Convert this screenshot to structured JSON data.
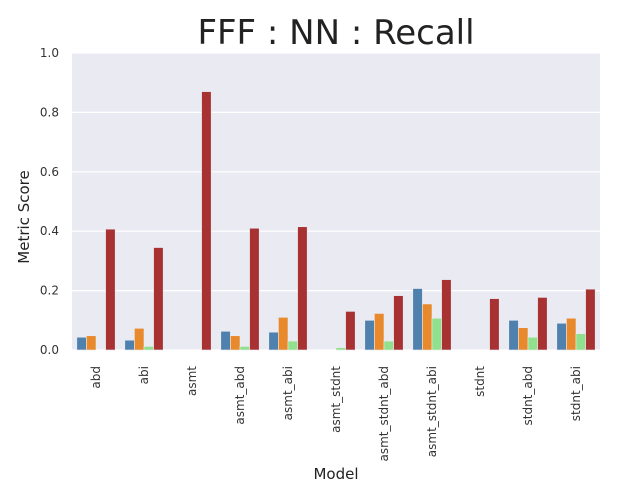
{
  "chart_data": {
    "type": "bar",
    "title": "FFF : NN : Recall",
    "xlabel": "Model",
    "ylabel": "Metric Score",
    "ylim": [
      0,
      1.0
    ],
    "yticks": [
      "0.0",
      "0.2",
      "0.4",
      "0.6",
      "0.8",
      "1.0"
    ],
    "grid": true,
    "categories": [
      "abd",
      "abi",
      "asmt",
      "asmt_abd",
      "asmt_abi",
      "asmt_stdnt",
      "asmt_stdnt_abd",
      "asmt_stdnt_abi",
      "stdnt",
      "stdnt_abd",
      "stdnt_abi"
    ],
    "series": [
      {
        "color": "#4f81af",
        "values": [
          0.043,
          0.033,
          0.0,
          0.063,
          0.06,
          0.0,
          0.1,
          0.207,
          0.0,
          0.1,
          0.09
        ]
      },
      {
        "color": "#e8892b",
        "values": [
          0.048,
          0.073,
          0.0,
          0.048,
          0.11,
          0.0,
          0.123,
          0.155,
          0.0,
          0.075,
          0.107
        ]
      },
      {
        "color": "#90e08c",
        "values": [
          0.0,
          0.012,
          0.0,
          0.012,
          0.03,
          0.008,
          0.03,
          0.107,
          0.0,
          0.043,
          0.055
        ]
      },
      {
        "color": "#a83232",
        "values": [
          0.407,
          0.345,
          0.87,
          0.41,
          0.415,
          0.13,
          0.183,
          0.237,
          0.173,
          0.177,
          0.205
        ]
      }
    ]
  },
  "colors": {
    "plot_bg": "#eaeaf2",
    "grid": "#ffffff"
  }
}
